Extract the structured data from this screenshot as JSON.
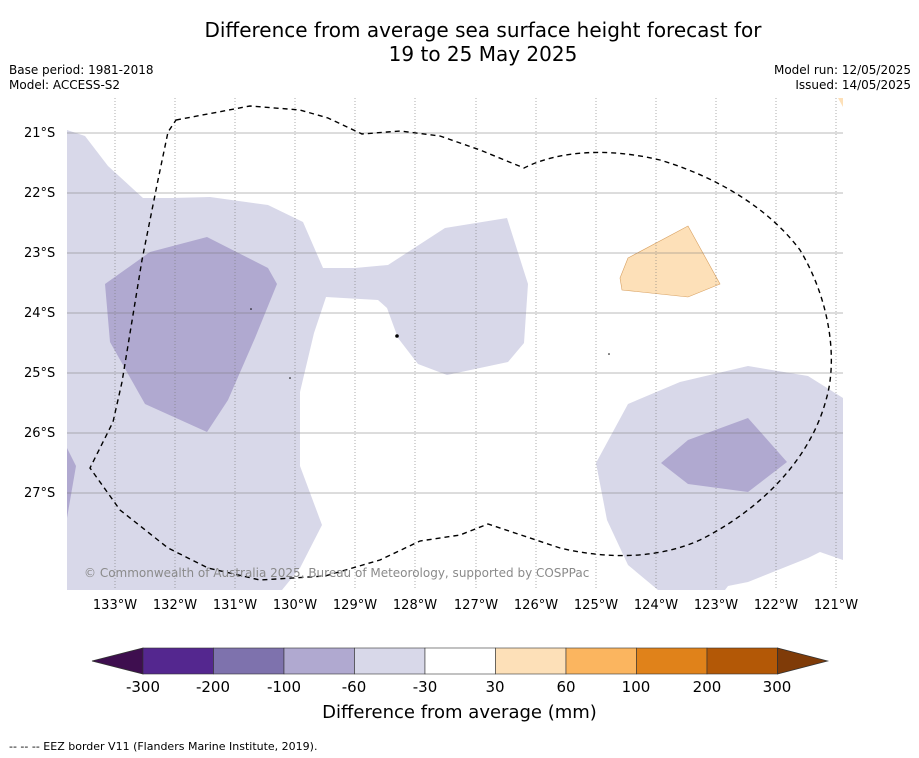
{
  "title_line1": "Difference from average sea surface height forecast for",
  "title_line2": "19 to 25 May 2025",
  "base_period": "Base period: 1981-2018",
  "model": "Model: ACCESS-S2",
  "model_run": "Model run: 12/05/2025",
  "issued": "Issued: 14/05/2025",
  "map": {
    "lat_labels": [
      "21°S",
      "22°S",
      "23°S",
      "24°S",
      "25°S",
      "26°S",
      "27°S"
    ],
    "lon_labels": [
      "133°W",
      "132°W",
      "131°W",
      "130°W",
      "129°W",
      "128°W",
      "127°W",
      "126°W",
      "125°W",
      "124°W",
      "123°W",
      "122°W",
      "121°W"
    ],
    "copyright": "© Commonwealth of Australia 2025, Bureau of Meteorology, supported by COSPPac",
    "border_style": "dashed",
    "colors": {
      "light_purple": "#d8d8e9",
      "mid_purple": "#b0a9d0",
      "light_orange": "#fde0b8"
    }
  },
  "colorbar": {
    "ticks": [
      "-300",
      "-200",
      "-100",
      "-60",
      "-30",
      "30",
      "60",
      "100",
      "200",
      "300"
    ],
    "colors": [
      "#3e0e4f",
      "#54278f",
      "#7e72ad",
      "#b0a9d0",
      "#d8d8e9",
      "#ffffff",
      "#fde0b8",
      "#fbb55f",
      "#e0821a",
      "#b35806",
      "#7f3b08"
    ],
    "label": "Difference from average (mm)"
  },
  "footnote": "--  --  -- EEZ border V11 (Flanders Marine Institute, 2019)."
}
